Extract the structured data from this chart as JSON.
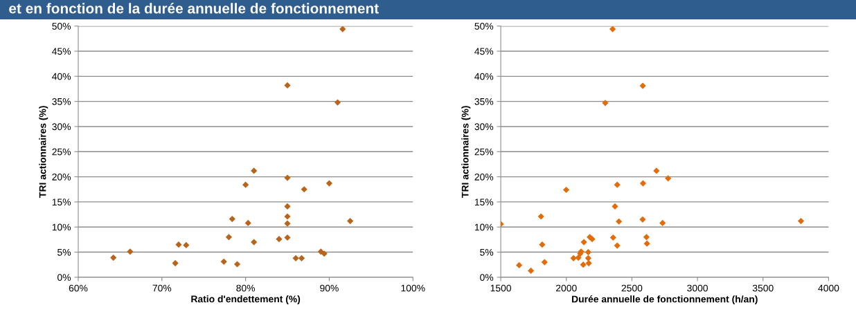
{
  "chart_data": [
    {
      "type": "scatter",
      "title": "et en fonction de la durée annuelle de fonctionnement",
      "xlabel": "Ratio d'endettement (%)",
      "ylabel": "TRI actionnaires (%)",
      "x": [
        64.2,
        66.2,
        71.6,
        72.0,
        72.9,
        77.4,
        78.0,
        78.4,
        79.0,
        80.0,
        80.3,
        81.0,
        81.0,
        84.0,
        85.0,
        85.0,
        85.0,
        85.0,
        85.0,
        85.0,
        86.0,
        86.7,
        87.0,
        89.0,
        89.4,
        90.0,
        91.0,
        91.6,
        92.5
      ],
      "values": [
        3.9,
        5.1,
        2.8,
        6.5,
        6.4,
        3.1,
        8.0,
        11.6,
        2.6,
        18.4,
        10.8,
        21.2,
        7.0,
        7.6,
        38.2,
        19.8,
        14.1,
        12.1,
        10.7,
        7.9,
        3.8,
        3.8,
        17.5,
        5.1,
        4.7,
        18.7,
        34.8,
        49.4,
        11.2
      ],
      "color": "#b8651b",
      "marker": "diamond",
      "grid": "y",
      "legend": false,
      "xlim": [
        60,
        100
      ],
      "xticks": [
        {
          "value": 60,
          "label": "60%"
        },
        {
          "value": 70,
          "label": "70%"
        },
        {
          "value": 80,
          "label": "80%"
        },
        {
          "value": 90,
          "label": "90%"
        },
        {
          "value": 100,
          "label": "100%"
        }
      ],
      "ylim": [
        0,
        50
      ],
      "yticks": [
        {
          "value": 0,
          "label": "0%"
        },
        {
          "value": 5,
          "label": "5%"
        },
        {
          "value": 10,
          "label": "10%"
        },
        {
          "value": 15,
          "label": "15%"
        },
        {
          "value": 20,
          "label": "20%"
        },
        {
          "value": 25,
          "label": "25%"
        },
        {
          "value": 30,
          "label": "30%"
        },
        {
          "value": 35,
          "label": "35%"
        },
        {
          "value": 40,
          "label": "40%"
        },
        {
          "value": 45,
          "label": "45%"
        },
        {
          "value": 50,
          "label": "50%"
        }
      ]
    },
    {
      "type": "scatter",
      "xlabel": "Durée annuelle de fonctionnement (h/an)",
      "ylabel": "TRI actionnaires (%)",
      "x": [
        1500,
        1640,
        1730,
        1807,
        1816,
        1834,
        1999,
        2055,
        2092,
        2106,
        2113,
        2129,
        2134,
        2167,
        2167,
        2171,
        2179,
        2197,
        2297,
        2353,
        2357,
        2371,
        2388,
        2388,
        2401,
        2583,
        2582,
        2585,
        2611,
        2615,
        2687,
        2734,
        2776,
        3789
      ],
      "values": [
        10.6,
        2.4,
        1.3,
        12.1,
        6.5,
        3.0,
        17.4,
        3.8,
        3.9,
        4.7,
        5.1,
        2.5,
        7.0,
        5.0,
        3.8,
        2.8,
        8.0,
        7.6,
        34.7,
        49.4,
        7.9,
        14.1,
        18.4,
        6.3,
        11.1,
        38.1,
        11.5,
        18.7,
        8.0,
        6.7,
        21.2,
        10.8,
        19.7,
        11.2
      ],
      "color": "#e36c0a",
      "marker": "diamond",
      "grid": "y",
      "legend": false,
      "xlim": [
        1500,
        4000
      ],
      "xticks": [
        1500,
        2000,
        2500,
        3000,
        3500,
        4000
      ],
      "ylim": [
        0,
        50
      ],
      "yticks": [
        {
          "value": 0,
          "label": "0%"
        },
        {
          "value": 5,
          "label": "5%"
        },
        {
          "value": 10,
          "label": "10%"
        },
        {
          "value": 15,
          "label": "15%"
        },
        {
          "value": 20,
          "label": "20%"
        },
        {
          "value": 25,
          "label": "25%"
        },
        {
          "value": 30,
          "label": "30%"
        },
        {
          "value": 35,
          "label": "35%"
        },
        {
          "value": 40,
          "label": "40%"
        },
        {
          "value": 45,
          "label": "45%"
        },
        {
          "value": 50,
          "label": "50%"
        }
      ]
    }
  ]
}
